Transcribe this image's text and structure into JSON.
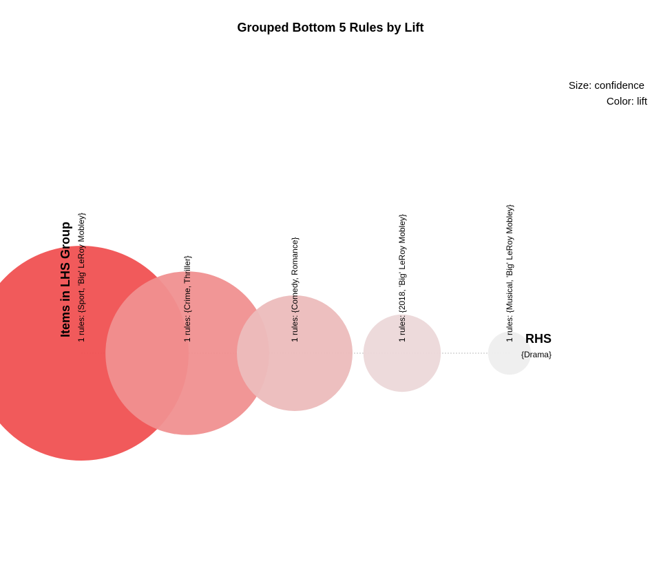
{
  "chart_data": {
    "type": "grouped-matrix",
    "title": "Grouped Bottom 5 Rules by Lift",
    "legend": {
      "size_label": "Size: confidence",
      "color_label": "Color: lift",
      "placement": "top-right"
    },
    "xlabel": "Items in LHS Group",
    "ylabel": "RHS",
    "rhs_items": [
      "{Drama}"
    ],
    "groups": [
      {
        "label": "1 rules: {Sport, 'Big' LeRoy Mobley}",
        "rule_count": 1,
        "confidence": 1.0,
        "lift_rank": 5,
        "color": "#f05152"
      },
      {
        "label": "1 rules: {Crime, Thriller}",
        "rule_count": 1,
        "confidence": 0.58,
        "lift_rank": 4,
        "color": "#f09090"
      },
      {
        "label": "1 rules: {Comedy, Romance}",
        "rule_count": 1,
        "confidence": 0.29,
        "lift_rank": 3,
        "color": "#ecbcbc"
      },
      {
        "label": "1 rules: {2018, 'Big' LeRoy Mobley}",
        "rule_count": 1,
        "confidence": 0.13,
        "lift_rank": 2,
        "color": "#ecd8d9"
      },
      {
        "label": "1 rules: {Musical, 'Big' LeRoy Mobley}",
        "rule_count": 1,
        "confidence": 0.04,
        "lift_rank": 1,
        "color": "#eeeeee"
      }
    ],
    "grid": false
  }
}
